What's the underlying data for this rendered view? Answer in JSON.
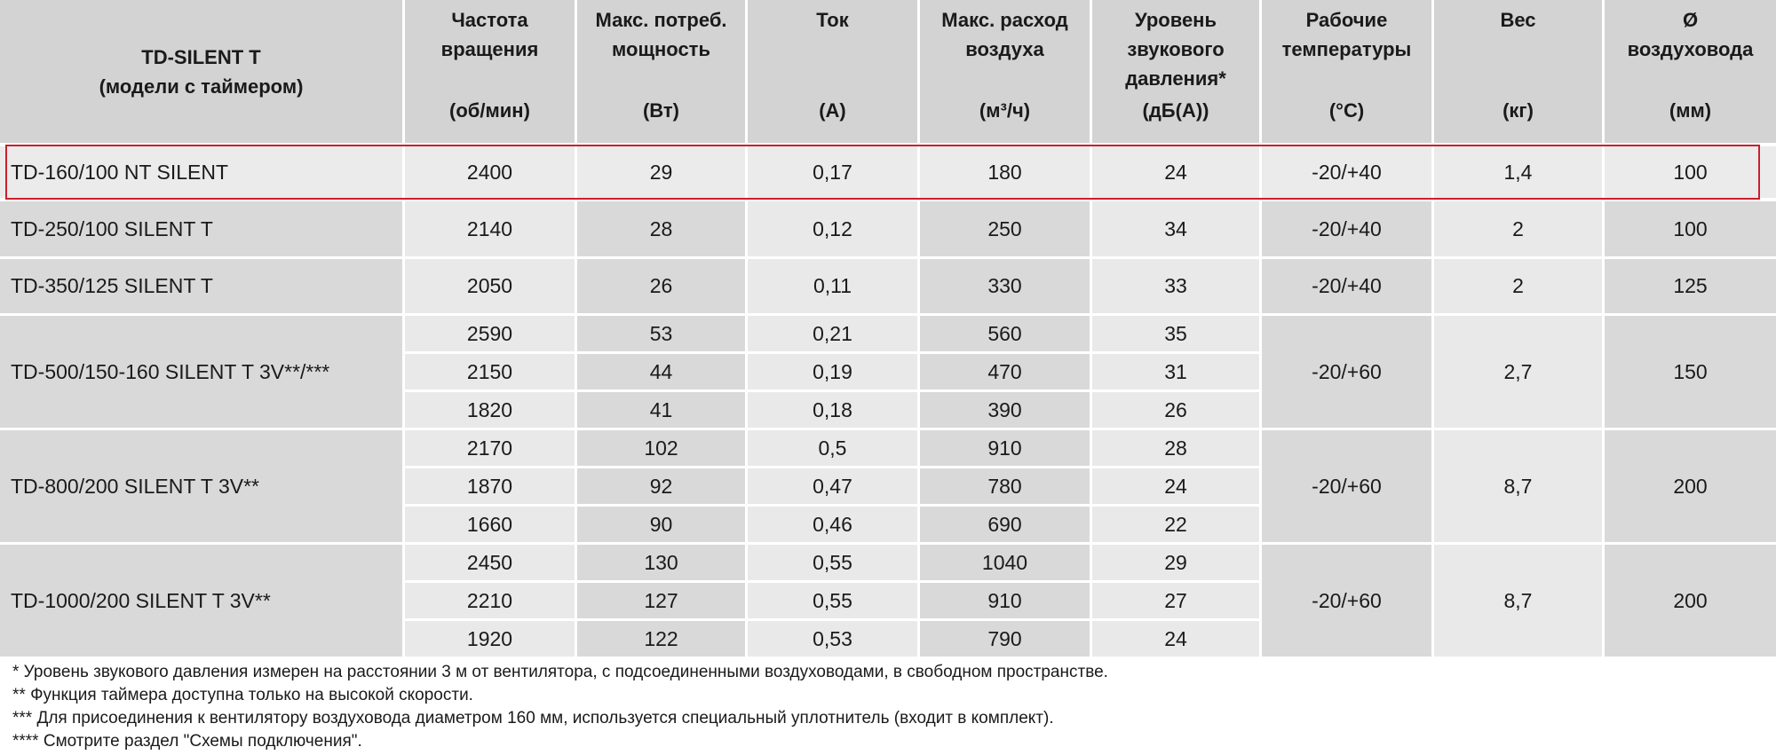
{
  "table": {
    "header": {
      "model_title": [
        "TD-SILENT T",
        "(модели с таймером)"
      ],
      "columns": [
        {
          "label": [
            "Частота",
            "вращения"
          ],
          "unit": "(об/мин)"
        },
        {
          "label": [
            "Макс. потреб.",
            "мощность"
          ],
          "unit": "(Вт)"
        },
        {
          "label": [
            "Ток"
          ],
          "unit": "(A)"
        },
        {
          "label": [
            "Макс. расход",
            "воздуха"
          ],
          "unit": "(м³/ч)"
        },
        {
          "label": [
            "Уровень",
            "звукового",
            "давления*"
          ],
          "unit": "(дБ(А))"
        },
        {
          "label": [
            "Рабочие",
            "температуры"
          ],
          "unit": "(°C)"
        },
        {
          "label": [
            "Вес"
          ],
          "unit": "(кг)"
        },
        {
          "label": [
            "Ø",
            "воздуховода"
          ],
          "unit": "(мм)"
        }
      ]
    },
    "rows": [
      {
        "model": "TD-160/100 NT SILENT",
        "speeds": [
          [
            "2400",
            "29",
            "0,17",
            "180",
            "24"
          ]
        ],
        "temp": "-20/+40",
        "weight": "1,4",
        "diameter": "100"
      },
      {
        "model": "TD-250/100 SILENT T",
        "speeds": [
          [
            "2140",
            "28",
            "0,12",
            "250",
            "34"
          ]
        ],
        "temp": "-20/+40",
        "weight": "2",
        "diameter": "100"
      },
      {
        "model": "TD-350/125 SILENT T",
        "speeds": [
          [
            "2050",
            "26",
            "0,11",
            "330",
            "33"
          ]
        ],
        "temp": "-20/+40",
        "weight": "2",
        "diameter": "125"
      },
      {
        "model": "TD-500/150-160 SILENT T 3V**/***",
        "speeds": [
          [
            "2590",
            "53",
            "0,21",
            "560",
            "35"
          ],
          [
            "2150",
            "44",
            "0,19",
            "470",
            "31"
          ],
          [
            "1820",
            "41",
            "0,18",
            "390",
            "26"
          ]
        ],
        "temp": "-20/+60",
        "weight": "2,7",
        "diameter": "150"
      },
      {
        "model": "TD-800/200 SILENT T 3V**",
        "speeds": [
          [
            "2170",
            "102",
            "0,5",
            "910",
            "28"
          ],
          [
            "1870",
            "92",
            "0,47",
            "780",
            "24"
          ],
          [
            "1660",
            "90",
            "0,46",
            "690",
            "22"
          ]
        ],
        "temp": "-20/+60",
        "weight": "8,7",
        "diameter": "200"
      },
      {
        "model": "TD-1000/200 SILENT T 3V**",
        "speeds": [
          [
            "2450",
            "130",
            "0,55",
            "1040",
            "29"
          ],
          [
            "2210",
            "127",
            "0,55",
            "910",
            "27"
          ],
          [
            "1920",
            "122",
            "0,53",
            "790",
            "24"
          ]
        ],
        "temp": "-20/+60",
        "weight": "8,7",
        "diameter": "200"
      }
    ],
    "footnotes": [
      " * Уровень звукового давления измерен на расстоянии 3 м от вентилятора, с подсоединенными воздуховодами, в свободном пространстве.",
      "** Функция таймера доступна только на высокой скорости.",
      "*** Для присоединения к вентилятору воздуховода диаметром 160 мм, используется специальный уплотнитель (входит в комплект).",
      "**** Смотрите раздел \"Схемы подключения\"."
    ]
  }
}
